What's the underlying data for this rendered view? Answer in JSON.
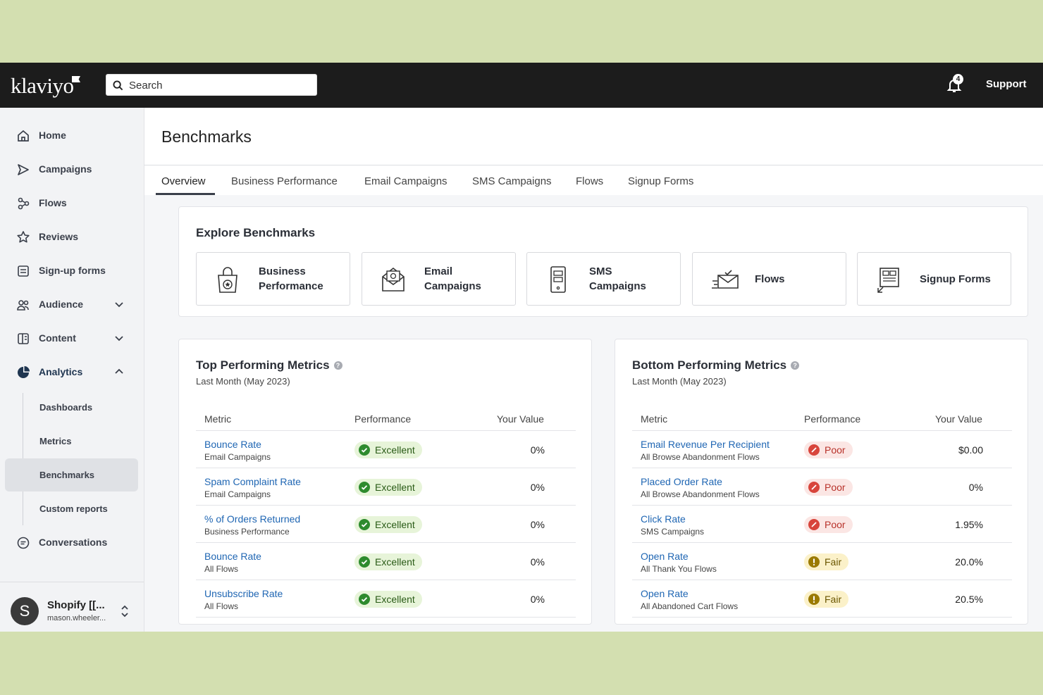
{
  "topbar": {
    "logo": "klaviyo",
    "search_placeholder": "Search",
    "notification_count": "4",
    "support_label": "Support"
  },
  "sidebar": {
    "items": [
      {
        "label": "Home",
        "icon": "home-icon"
      },
      {
        "label": "Campaigns",
        "icon": "send-icon"
      },
      {
        "label": "Flows",
        "icon": "flows-icon"
      },
      {
        "label": "Reviews",
        "icon": "star-icon"
      },
      {
        "label": "Sign-up forms",
        "icon": "form-icon"
      },
      {
        "label": "Audience",
        "icon": "people-icon"
      },
      {
        "label": "Content",
        "icon": "content-icon"
      },
      {
        "label": "Analytics",
        "icon": "pie-chart-icon"
      },
      {
        "label": "Conversations",
        "icon": "chat-icon"
      }
    ],
    "analytics_sub": [
      "Dashboards",
      "Metrics",
      "Benchmarks",
      "Custom reports"
    ],
    "account": {
      "initial": "S",
      "name": "Shopify [[...",
      "email": "mason.wheeler..."
    }
  },
  "page": {
    "title": "Benchmarks",
    "tabs": [
      "Overview",
      "Business Performance",
      "Email Campaigns",
      "SMS Campaigns",
      "Flows",
      "Signup Forms"
    ]
  },
  "explore": {
    "title": "Explore Benchmarks",
    "tiles": [
      {
        "line1": "Business",
        "line2": "Performance",
        "icon": "shopping-bag-icon"
      },
      {
        "line1": "Email",
        "line2": "Campaigns",
        "icon": "email-icon"
      },
      {
        "line1": "SMS",
        "line2": "Campaigns",
        "icon": "phone-icon"
      },
      {
        "line1": "Flows",
        "line2": "",
        "icon": "flows-envelope-icon"
      },
      {
        "line1": "Signup Forms",
        "line2": "",
        "icon": "signup-form-icon"
      }
    ]
  },
  "top_metrics": {
    "title": "Top Performing Metrics",
    "subtitle": "Last Month (May 2023)",
    "headers": {
      "metric": "Metric",
      "performance": "Performance",
      "value": "Your Value"
    },
    "rows": [
      {
        "name": "Bounce Rate",
        "sub": "Email Campaigns",
        "status": "Excellent",
        "value": "0%"
      },
      {
        "name": "Spam Complaint Rate",
        "sub": "Email Campaigns",
        "status": "Excellent",
        "value": "0%"
      },
      {
        "name": "% of Orders Returned",
        "sub": "Business Performance",
        "status": "Excellent",
        "value": "0%"
      },
      {
        "name": "Bounce Rate",
        "sub": "All Flows",
        "status": "Excellent",
        "value": "0%"
      },
      {
        "name": "Unsubscribe Rate",
        "sub": "All Flows",
        "status": "Excellent",
        "value": "0%"
      }
    ]
  },
  "bottom_metrics": {
    "title": "Bottom Performing Metrics",
    "subtitle": "Last Month (May 2023)",
    "headers": {
      "metric": "Metric",
      "performance": "Performance",
      "value": "Your Value"
    },
    "rows": [
      {
        "name": "Email Revenue Per Recipient",
        "sub": "All Browse Abandonment Flows",
        "status": "Poor",
        "value": "$0.00"
      },
      {
        "name": "Placed Order Rate",
        "sub": "All Browse Abandonment Flows",
        "status": "Poor",
        "value": "0%"
      },
      {
        "name": "Click Rate",
        "sub": "SMS Campaigns",
        "status": "Poor",
        "value": "1.95%"
      },
      {
        "name": "Open Rate",
        "sub": "All Thank You Flows",
        "status": "Fair",
        "value": "20.0%"
      },
      {
        "name": "Open Rate",
        "sub": "All Abandoned Cart Flows",
        "status": "Fair",
        "value": "20.5%"
      }
    ]
  },
  "colors": {
    "link": "#1f66b3",
    "excellent": "#2e8b2e",
    "poor": "#d8453c",
    "fair": "#9b7a00",
    "topbar": "#1c1c1c"
  }
}
